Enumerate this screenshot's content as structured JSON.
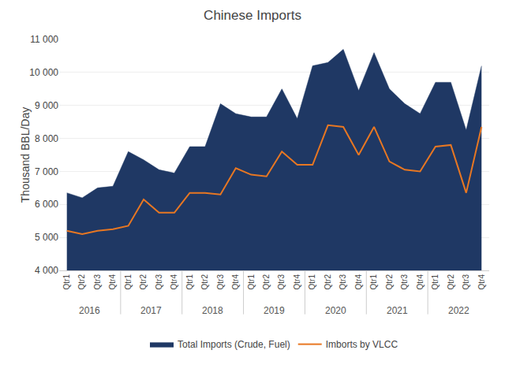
{
  "chart_data": {
    "type": "area",
    "title": "Chinese Imports",
    "ylabel": "Thousand BBL/Day",
    "categories": [
      "Qtr1",
      "Qtr2",
      "Qtr3",
      "Qtr4",
      "Qtr1",
      "Qtr2",
      "Qtr3",
      "Qtr4",
      "Qtr1",
      "Qtr2",
      "Qtr3",
      "Qtr4",
      "Qtr1",
      "Qtr2",
      "Qtr3",
      "Qtr4",
      "Qtr1",
      "Qtr2",
      "Qtr3",
      "Qtr4",
      "Qtr1",
      "Qtr2",
      "Qtr3",
      "Qtr4",
      "Qtr1",
      "Qtr2",
      "Qtr3",
      "Qtr4"
    ],
    "annotations": [
      "2016",
      "2017",
      "2018",
      "2019",
      "2020",
      "2021",
      "2022"
    ],
    "series": [
      {
        "name": "Total Imports (Crude, Fuel)",
        "type": "area",
        "color": "#1f3864",
        "values": [
          6350,
          6200,
          6500,
          6550,
          7600,
          7350,
          7050,
          6950,
          7750,
          7750,
          9050,
          8750,
          8650,
          8650,
          9500,
          8600,
          10200,
          10300,
          10700,
          9450,
          10600,
          9500,
          9050,
          8750,
          9700,
          9700,
          8250,
          10200
        ]
      },
      {
        "name": "Imborts by VLCC",
        "type": "line",
        "color": "#e87722",
        "values": [
          5200,
          5100,
          5200,
          5250,
          5350,
          6150,
          5750,
          5750,
          6350,
          6350,
          6300,
          7100,
          6900,
          6850,
          7600,
          7200,
          7200,
          8400,
          8350,
          7500,
          8350,
          7300,
          7050,
          7000,
          7750,
          7800,
          6350,
          8350
        ]
      }
    ],
    "ylim": [
      4000,
      11000
    ],
    "yticks": [
      {
        "value": 4000,
        "label": "4 000"
      },
      {
        "value": 5000,
        "label": "5 000"
      },
      {
        "value": 6000,
        "label": "6 000"
      },
      {
        "value": 7000,
        "label": "7 000"
      },
      {
        "value": 8000,
        "label": "8 000"
      },
      {
        "value": 9000,
        "label": "9 000"
      },
      {
        "value": 10000,
        "label": "10 000"
      },
      {
        "value": 11000,
        "label": "11 000"
      }
    ],
    "grid": true,
    "legend": "bottom"
  }
}
